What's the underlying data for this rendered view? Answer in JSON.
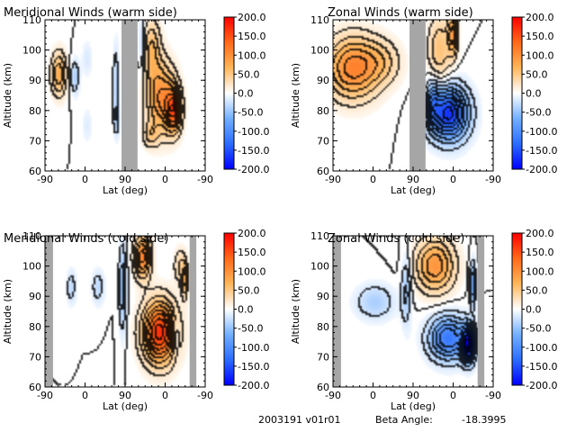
{
  "colors": {
    "missing": "#a6a6a6",
    "contour": "#000000",
    "colorbar_stops": [
      "#0000ff",
      "#2b6cff",
      "#74b0ff",
      "#ffffff",
      "#ffb65c",
      "#ff6a1a",
      "#ff0000"
    ]
  },
  "footer": {
    "id_text": "2003191 v01r01",
    "beta_label": "Beta Angle:",
    "beta_value": "-18.3995"
  },
  "chart_data": [
    {
      "type": "heatmap",
      "title": "Meridional Winds (warm side)",
      "xlabel": "Lat (deg)",
      "ylabel": "Altitude (km)",
      "xticks": [
        "-90",
        "0",
        "90",
        "0",
        "-90"
      ],
      "yticks": [
        60,
        70,
        80,
        90,
        100,
        110
      ],
      "ylim": [
        60,
        110
      ],
      "colorbar": {
        "vmin": -200,
        "vmax": 200,
        "ticks": [
          "200.0",
          "150.0",
          "100.0",
          "50.0",
          "0.0",
          "-50.0",
          "-100.0",
          "-150.0",
          "-200.0"
        ]
      },
      "missing_bands": [
        [
          82,
          118
        ]
      ],
      "features": [
        {
          "x": -58,
          "alt": 92,
          "value": 75,
          "sx": 12,
          "sy": 5
        },
        {
          "x": -22,
          "alt": 91,
          "value": -40,
          "sx": 7,
          "sy": 4
        },
        {
          "x": 5,
          "alt": 97,
          "value": -18,
          "sx": 8,
          "sy": 4
        },
        {
          "x": 5,
          "alt": 75,
          "value": -15,
          "sx": 8,
          "sy": 4
        },
        {
          "x": 70,
          "alt": 89,
          "value": -35,
          "sx": 5,
          "sy": 9
        },
        {
          "x": 72,
          "alt": 77,
          "value": -30,
          "sx": 5,
          "sy": 4
        },
        {
          "x": 128,
          "alt": 102,
          "value": -35,
          "sx": 6,
          "sy": 6
        },
        {
          "x": 150,
          "alt": 100,
          "value": 60,
          "sx": 14,
          "sy": 7
        },
        {
          "x": 172,
          "alt": 84,
          "value": 100,
          "sx": 22,
          "sy": 8
        },
        {
          "x": 200,
          "alt": 80,
          "value": 120,
          "sx": 12,
          "sy": 5
        },
        {
          "x": 148,
          "alt": 72,
          "value": 40,
          "sx": 12,
          "sy": 3
        }
      ]
    },
    {
      "type": "heatmap",
      "title": "Zonal Winds (warm side)",
      "xlabel": "Lat (deg)",
      "ylabel": "Altitude (km)",
      "xticks": [
        "-90",
        "0",
        "90",
        "0",
        "-90"
      ],
      "yticks": [
        60,
        70,
        80,
        90,
        100,
        110
      ],
      "ylim": [
        60,
        110
      ],
      "colorbar": {
        "vmin": -200,
        "vmax": 200,
        "ticks": [
          "200.0",
          "150.0",
          "100.0",
          "50.0",
          "0.0",
          "-50.0",
          "-100.0",
          "-150.0",
          "-200.0"
        ]
      },
      "missing_bands": [
        [
          82,
          118
        ]
      ],
      "features": [
        {
          "x": -45,
          "alt": 94,
          "value": 110,
          "sx": 40,
          "sy": 7
        },
        {
          "x": 20,
          "alt": 96,
          "value": 40,
          "sx": 30,
          "sy": 5
        },
        {
          "x": 150,
          "alt": 100,
          "value": 55,
          "sx": 18,
          "sy": 8
        },
        {
          "x": 180,
          "alt": 105,
          "value": 80,
          "sx": 8,
          "sy": 5
        },
        {
          "x": 170,
          "alt": 79,
          "value": -170,
          "sx": 30,
          "sy": 6
        },
        {
          "x": 135,
          "alt": 83,
          "value": -60,
          "sx": 10,
          "sy": 5
        }
      ]
    },
    {
      "type": "heatmap",
      "title": "Meridional Winds (cold side)",
      "xlabel": "Lat (deg)",
      "ylabel": "Altitude (km)",
      "xticks": [
        "-90",
        "0",
        "90",
        "0",
        "-90"
      ],
      "yticks": [
        60,
        70,
        80,
        90,
        100,
        110
      ],
      "ylim": [
        60,
        110
      ],
      "colorbar": {
        "vmin": -200,
        "vmax": 200,
        "ticks": [
          "200.0",
          "150.0",
          "100.0",
          "50.0",
          "0.0",
          "-50.0",
          "-100.0",
          "-150.0",
          "-200.0"
        ]
      },
      "missing_bands": [
        [
          -90,
          -72
        ],
        [
          235,
          250
        ]
      ],
      "features": [
        {
          "x": -30,
          "alt": 93,
          "value": -30,
          "sx": 8,
          "sy": 4
        },
        {
          "x": 30,
          "alt": 93,
          "value": -30,
          "sx": 10,
          "sy": 4
        },
        {
          "x": 85,
          "alt": 93,
          "value": -55,
          "sx": 6,
          "sy": 10
        },
        {
          "x": 130,
          "alt": 103,
          "value": 110,
          "sx": 13,
          "sy": 5
        },
        {
          "x": 215,
          "alt": 100,
          "value": 40,
          "sx": 10,
          "sy": 4
        },
        {
          "x": 168,
          "alt": 78,
          "value": 170,
          "sx": 26,
          "sy": 7
        },
        {
          "x": 205,
          "alt": 77,
          "value": -40,
          "sx": 6,
          "sy": 4
        },
        {
          "x": 225,
          "alt": 95,
          "value": 60,
          "sx": 5,
          "sy": 4
        }
      ]
    },
    {
      "type": "heatmap",
      "title": "Zonal Winds (cold side)",
      "xlabel": "Lat (deg)",
      "ylabel": "Altitude (km)",
      "xticks": [
        "-90",
        "0",
        "90",
        "0",
        "-90"
      ],
      "yticks": [
        60,
        70,
        80,
        90,
        100,
        110
      ],
      "ylim": [
        60,
        110
      ],
      "colorbar": {
        "vmin": -200,
        "vmax": 200,
        "ticks": [
          "200.0",
          "150.0",
          "100.0",
          "50.0",
          "0.0",
          "-50.0",
          "-100.0",
          "-150.0",
          "-200.0"
        ]
      },
      "missing_bands": [
        [
          -90,
          -72
        ],
        [
          235,
          250
        ]
      ],
      "features": [
        {
          "x": 5,
          "alt": 88,
          "value": -40,
          "sx": 30,
          "sy": 4
        },
        {
          "x": 75,
          "alt": 92,
          "value": -45,
          "sx": 8,
          "sy": 8
        },
        {
          "x": 140,
          "alt": 100,
          "value": 95,
          "sx": 30,
          "sy": 6
        },
        {
          "x": 170,
          "alt": 76,
          "value": -120,
          "sx": 30,
          "sy": 5
        },
        {
          "x": 215,
          "alt": 74,
          "value": -180,
          "sx": 10,
          "sy": 4
        },
        {
          "x": 225,
          "alt": 94,
          "value": -80,
          "sx": 5,
          "sy": 5
        }
      ]
    }
  ]
}
